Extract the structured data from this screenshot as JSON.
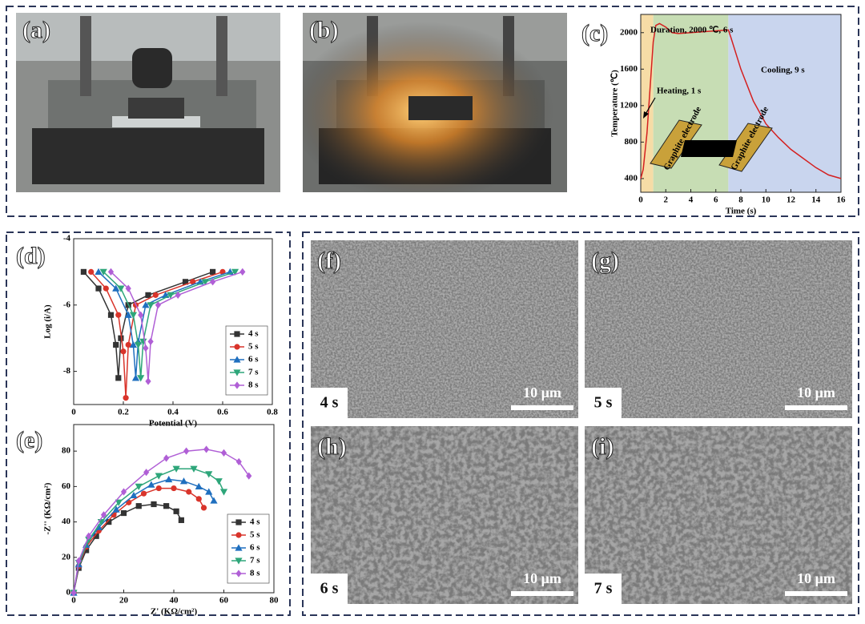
{
  "photos": [
    {
      "label": "(a)"
    },
    {
      "label": "(b)"
    }
  ],
  "chart_data": [
    {
      "type": "line",
      "label": "(c)",
      "x_label": "Time (s)",
      "y_label": "Temperature (℃)",
      "xlim": [
        0,
        16
      ],
      "xticks": [
        0,
        2,
        4,
        6,
        8,
        10,
        12,
        14,
        16
      ],
      "ylim": [
        250,
        2200
      ],
      "yticks": [
        400,
        800,
        1200,
        1600,
        2000
      ],
      "regions": [
        {
          "start": 0,
          "end": 1,
          "color": "#f6dca6"
        },
        {
          "start": 1,
          "end": 7,
          "color": "#c7ddb4"
        },
        {
          "start": 7,
          "end": 16,
          "color": "#c9d5ee"
        }
      ],
      "annotations": [
        "Duration, 2000 ℃, 6 s",
        "Heating, 1 s",
        "Cooling, 9 s",
        "Graphite electrode",
        "Graphite electrode"
      ],
      "series": [
        {
          "color": "#d42020",
          "marker": "none",
          "x": [
            0,
            0.2,
            0.5,
            0.8,
            1.0,
            1.2,
            1.5,
            2,
            2.5,
            3,
            4,
            5,
            6,
            7,
            7.2,
            8,
            9,
            10,
            11,
            12,
            13,
            14,
            15,
            16
          ],
          "values": [
            400,
            500,
            900,
            1500,
            1900,
            2080,
            2100,
            2060,
            2000,
            1990,
            2000,
            2010,
            2020,
            2030,
            1950,
            1600,
            1250,
            1000,
            850,
            720,
            620,
            520,
            440,
            400
          ]
        }
      ]
    },
    {
      "type": "line",
      "label": "(d)",
      "x_label": "Potential (V)",
      "y_label": "Log (i/A)",
      "xlim": [
        0,
        0.8
      ],
      "xticks": [
        0,
        0.2,
        0.4,
        0.6,
        0.8
      ],
      "ylim": [
        -9,
        -4
      ],
      "yticks": [
        -4,
        -6,
        -8
      ],
      "legend": "lower right",
      "series": [
        {
          "name": "4 s",
          "color": "#333333",
          "marker": "square",
          "x": [
            0.04,
            0.1,
            0.15,
            0.17,
            0.18,
            0.19,
            0.22,
            0.3,
            0.45,
            0.56
          ],
          "values": [
            -5.0,
            -5.5,
            -6.3,
            -7.2,
            -8.2,
            -7.0,
            -6.0,
            -5.7,
            -5.3,
            -5.0
          ]
        },
        {
          "name": "5 s",
          "color": "#d9342b",
          "marker": "circle",
          "x": [
            0.07,
            0.13,
            0.18,
            0.2,
            0.21,
            0.22,
            0.25,
            0.33,
            0.48,
            0.6
          ],
          "values": [
            -5.0,
            -5.5,
            -6.3,
            -7.4,
            -8.8,
            -7.2,
            -6.0,
            -5.7,
            -5.3,
            -5.0
          ]
        },
        {
          "name": "6 s",
          "color": "#1f6fbf",
          "marker": "tri-up",
          "x": [
            0.1,
            0.17,
            0.22,
            0.24,
            0.25,
            0.26,
            0.29,
            0.37,
            0.51,
            0.63
          ],
          "values": [
            -5.0,
            -5.5,
            -6.3,
            -7.2,
            -8.2,
            -7.1,
            -6.0,
            -5.7,
            -5.3,
            -5.0
          ]
        },
        {
          "name": "7 s",
          "color": "#2ea67a",
          "marker": "tri-down",
          "x": [
            0.12,
            0.19,
            0.24,
            0.26,
            0.27,
            0.28,
            0.31,
            0.39,
            0.53,
            0.65
          ],
          "values": [
            -5.0,
            -5.5,
            -6.3,
            -7.2,
            -8.2,
            -7.1,
            -6.0,
            -5.7,
            -5.3,
            -5.0
          ]
        },
        {
          "name": "8 s",
          "color": "#b05fd6",
          "marker": "diamond",
          "x": [
            0.15,
            0.22,
            0.27,
            0.29,
            0.3,
            0.31,
            0.34,
            0.42,
            0.56,
            0.68
          ],
          "values": [
            -5.0,
            -5.5,
            -6.3,
            -7.3,
            -8.3,
            -7.1,
            -6.0,
            -5.7,
            -5.3,
            -5.0
          ]
        }
      ]
    },
    {
      "type": "line",
      "label": "(e)",
      "x_label": "Z' (KΩ/cm²)",
      "y_label": "-Z'' (KΩ/cm²)",
      "xlim": [
        0,
        80
      ],
      "xticks": [
        0,
        20,
        40,
        60,
        80
      ],
      "ylim": [
        0,
        95
      ],
      "yticks": [
        0,
        20,
        40,
        60,
        80
      ],
      "legend": "lower right",
      "series": [
        {
          "name": "4 s",
          "color": "#333333",
          "marker": "square",
          "x": [
            0,
            2,
            5,
            9,
            14,
            20,
            26,
            32,
            37,
            41,
            43
          ],
          "values": [
            0,
            14,
            24,
            32,
            40,
            45,
            49,
            50,
            49,
            46,
            41
          ]
        },
        {
          "name": "5 s",
          "color": "#d9342b",
          "marker": "circle",
          "x": [
            0,
            2,
            5,
            10,
            16,
            22,
            28,
            34,
            40,
            46,
            50,
            52
          ],
          "values": [
            0,
            15,
            26,
            35,
            44,
            51,
            56,
            59,
            59,
            57,
            53,
            48
          ]
        },
        {
          "name": "6 s",
          "color": "#1f6fbf",
          "marker": "tri-up",
          "x": [
            0,
            2,
            5,
            10,
            17,
            24,
            31,
            38,
            44,
            50,
            54,
            56
          ],
          "values": [
            0,
            16,
            27,
            37,
            47,
            55,
            61,
            64,
            63,
            60,
            57,
            52
          ]
        },
        {
          "name": "7 s",
          "color": "#2ea67a",
          "marker": "tri-down",
          "x": [
            0,
            2,
            6,
            11,
            18,
            26,
            34,
            41,
            48,
            54,
            58,
            60
          ],
          "values": [
            0,
            17,
            30,
            40,
            51,
            60,
            66,
            70,
            70,
            67,
            63,
            57
          ]
        },
        {
          "name": "8 s",
          "color": "#b05fd6",
          "marker": "diamond",
          "x": [
            0,
            2,
            6,
            12,
            20,
            29,
            37,
            45,
            53,
            60,
            66,
            70
          ],
          "values": [
            0,
            18,
            32,
            44,
            57,
            68,
            76,
            80,
            81,
            79,
            74,
            66
          ]
        }
      ]
    }
  ],
  "sem": [
    {
      "label": "(f)",
      "time": "4 s",
      "scale": "10 μm"
    },
    {
      "label": "(g)",
      "time": "5 s",
      "scale": "10 μm"
    },
    {
      "label": "(h)",
      "time": "6 s",
      "scale": "10 μm"
    },
    {
      "label": "(i)",
      "time": "7 s",
      "scale": "10 μm"
    }
  ]
}
